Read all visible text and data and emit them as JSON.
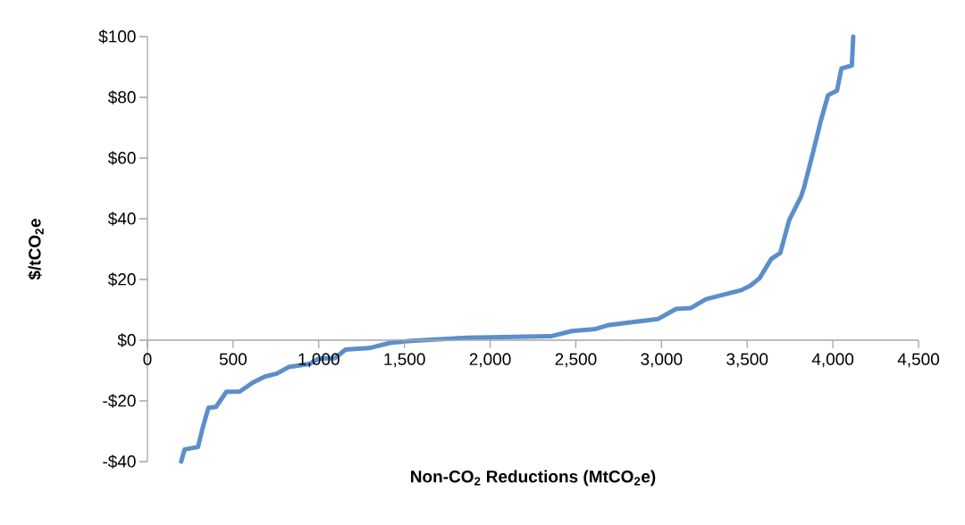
{
  "chart_data": {
    "type": "line",
    "xlabel": "Non-CO$_{2}$ Reductions (MtCO$_{2}$e)",
    "ylabel": "$/tCO$_{2}$e",
    "x": [
      197,
      217,
      295,
      322,
      356,
      400,
      461,
      539,
      617,
      686,
      756,
      826,
      947,
      999,
      1095,
      1156,
      1295,
      1416,
      1538,
      1868,
      2355,
      2477,
      2616,
      2685,
      2842,
      2981,
      3085,
      3172,
      3259,
      3467,
      3520,
      3572,
      3641,
      3693,
      3745,
      3815,
      3832,
      3885,
      3928,
      3972,
      4024,
      4050,
      4111,
      4119
    ],
    "series": [
      {
        "color": "#5b8fc9",
        "values": [
          -40,
          -36,
          -35.2,
          -29,
          -22.3,
          -22,
          -17,
          -16.9,
          -13.9,
          -12,
          -11,
          -8.8,
          -7.8,
          -6.1,
          -5.9,
          -3.1,
          -2.6,
          -0.9,
          -0.2,
          0.8,
          1.3,
          3.0,
          3.7,
          4.9,
          6.0,
          7.0,
          10.3,
          10.6,
          13.5,
          16.5,
          18,
          20.4,
          26.8,
          28.7,
          39.5,
          47.4,
          50.3,
          62,
          71.9,
          80.7,
          82.2,
          89.5,
          90.5,
          100
        ]
      }
    ],
    "xlim": [
      0,
      4500
    ],
    "xticks": [
      0,
      500,
      {
        "value": 1000,
        "label": "1,000"
      },
      {
        "value": 1500,
        "label": "1,500"
      },
      {
        "value": 2000,
        "label": "2,000"
      },
      {
        "value": 2500,
        "label": "2,500"
      },
      {
        "value": 3000,
        "label": "3,000"
      },
      {
        "value": 3500,
        "label": "3,500"
      },
      {
        "value": 4000,
        "label": "4,000"
      },
      {
        "value": 4500,
        "label": "4,500"
      }
    ],
    "ylim": [
      -40,
      100
    ],
    "yticks": [
      {
        "value": -40,
        "label": "-$40"
      },
      {
        "value": -20,
        "label": "-$20"
      },
      {
        "value": 0,
        "label": "$0"
      },
      {
        "value": 20,
        "label": "$20"
      },
      {
        "value": 40,
        "label": "$40"
      },
      {
        "value": 60,
        "label": "$60"
      },
      {
        "value": 80,
        "label": "$80"
      },
      {
        "value": 100,
        "label": "$100"
      }
    ],
    "marker": "none",
    "line_style": "solid"
  }
}
